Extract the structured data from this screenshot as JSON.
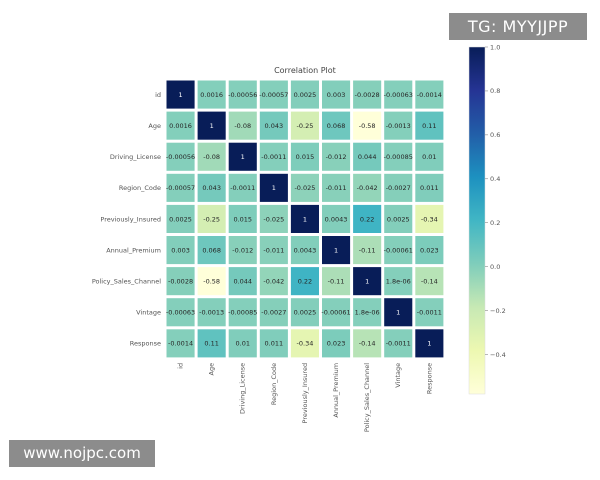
{
  "chart_data": {
    "type": "heatmap",
    "title": "Correlation Plot",
    "variables": [
      "id",
      "Age",
      "Driving_License",
      "Region_Code",
      "Previously_Insured",
      "Annual_Premium",
      "Policy_Sales_Channel",
      "Vintage",
      "Response"
    ],
    "values": [
      [
        1,
        0.0016,
        -0.00056,
        -0.00057,
        0.0025,
        0.003,
        -0.0028,
        -0.00063,
        -0.0014
      ],
      [
        0.0016,
        1,
        -0.08,
        0.043,
        -0.25,
        0.068,
        -0.58,
        -0.0013,
        0.11
      ],
      [
        -0.00056,
        -0.08,
        1,
        -0.0011,
        0.015,
        -0.012,
        0.044,
        -0.00085,
        0.01
      ],
      [
        -0.00057,
        0.043,
        -0.0011,
        1,
        -0.025,
        -0.011,
        -0.042,
        -0.0027,
        0.011
      ],
      [
        0.0025,
        -0.25,
        0.015,
        -0.025,
        1,
        0.0043,
        0.22,
        0.0025,
        -0.34
      ],
      [
        0.003,
        0.068,
        -0.012,
        -0.011,
        0.0043,
        1,
        -0.11,
        -0.00061,
        0.023
      ],
      [
        -0.0028,
        -0.58,
        0.044,
        -0.042,
        0.22,
        -0.11,
        1,
        1.8e-06,
        -0.14
      ],
      [
        -0.00063,
        -0.0013,
        -0.00085,
        -0.0027,
        0.0025,
        -0.00061,
        1.8e-06,
        1,
        -0.0011
      ],
      [
        -0.0014,
        0.11,
        0.01,
        0.011,
        -0.34,
        0.023,
        -0.14,
        -0.0011,
        1
      ]
    ],
    "annotations": [
      [
        "1",
        "0.0016",
        "-0.00056",
        "-0.00057",
        "0.0025",
        "0.003",
        "-0.0028",
        "-0.00063",
        "-0.0014"
      ],
      [
        "0.0016",
        "1",
        "-0.08",
        "0.043",
        "-0.25",
        "0.068",
        "-0.58",
        "-0.0013",
        "0.11"
      ],
      [
        "-0.00056",
        "-0.08",
        "1",
        "-0.0011",
        "0.015",
        "-0.012",
        "0.044",
        "-0.00085",
        "0.01"
      ],
      [
        "-0.00057",
        "0.043",
        "-0.0011",
        "1",
        "-0.025",
        "-0.011",
        "-0.042",
        "-0.0027",
        "0.011"
      ],
      [
        "0.0025",
        "-0.25",
        "0.015",
        "-0.025",
        "1",
        "0.0043",
        "0.22",
        "0.0025",
        "-0.34"
      ],
      [
        "0.003",
        "0.068",
        "-0.012",
        "-0.011",
        "0.0043",
        "1",
        "-0.11",
        "-0.00061",
        "0.023"
      ],
      [
        "-0.0028",
        "-0.58",
        "0.044",
        "-0.042",
        "0.22",
        "-0.11",
        "1",
        "1.8e-06",
        "-0.14"
      ],
      [
        "-0.00063",
        "-0.0013",
        "-0.00085",
        "-0.0027",
        "0.0025",
        "-0.00061",
        "1.8e-06",
        "1",
        "-0.0011"
      ],
      [
        "-0.0014",
        "0.11",
        "0.01",
        "0.011",
        "-0.34",
        "0.023",
        "-0.14",
        "-0.0011",
        "1"
      ]
    ],
    "colorbar": {
      "range": [
        -0.58,
        1.0
      ],
      "ticks": [
        1.0,
        0.8,
        0.6,
        0.4,
        0.2,
        0.0,
        -0.2,
        -0.4
      ],
      "tick_labels": [
        "1.0",
        "0.8",
        "0.6",
        "0.4",
        "0.2",
        "0.0",
        "−0.2",
        "−0.4"
      ],
      "colormap": "YlGnBu",
      "colormap_stops": [
        "#ffffd9",
        "#edf8b1",
        "#c7e9b4",
        "#7fcdbb",
        "#41b6c4",
        "#1d91c0",
        "#225ea8",
        "#253494",
        "#081d58"
      ]
    },
    "cell_border_color": "#ffffff"
  },
  "watermarks": {
    "tg": "TG: MYYJJPP",
    "url": "www.nojpc.com"
  }
}
